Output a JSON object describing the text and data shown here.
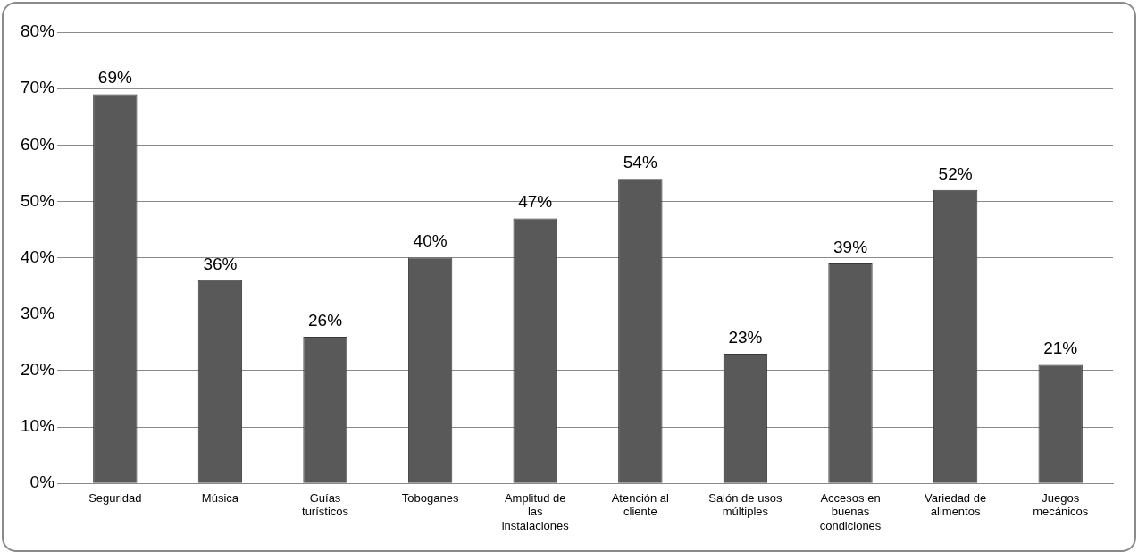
{
  "chart_data": {
    "type": "bar",
    "categories": [
      "Seguridad",
      "Música",
      "Guías turísticos",
      "Toboganes",
      "Amplitud de las instalaciones",
      "Atención al cliente",
      "Salón de usos múltiples",
      "Accesos en buenas condiciones",
      "Variedad de alimentos",
      "Juegos mecánicos"
    ],
    "values": [
      69,
      36,
      26,
      40,
      47,
      54,
      23,
      39,
      52,
      21
    ],
    "value_labels": [
      "69%",
      "36%",
      "26%",
      "40%",
      "47%",
      "54%",
      "23%",
      "39%",
      "52%",
      "21%"
    ],
    "color": "#595959",
    "ylim": [
      0,
      80
    ],
    "yticks": [
      {
        "value": 0,
        "label": "0%"
      },
      {
        "value": 10,
        "label": "10%"
      },
      {
        "value": 20,
        "label": "20%"
      },
      {
        "value": 30,
        "label": "30%"
      },
      {
        "value": 40,
        "label": "40%"
      },
      {
        "value": 50,
        "label": "50%"
      },
      {
        "value": 60,
        "label": "60%"
      },
      {
        "value": 70,
        "label": "70%"
      },
      {
        "value": 80,
        "label": "80%"
      }
    ],
    "grid": "y",
    "legend": false
  }
}
